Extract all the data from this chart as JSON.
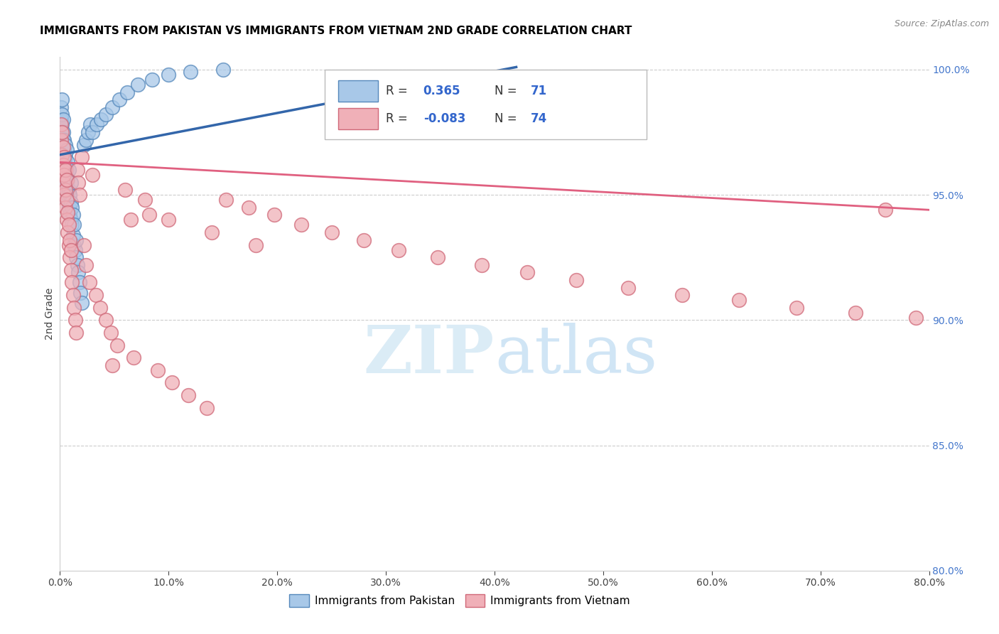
{
  "title": "IMMIGRANTS FROM PAKISTAN VS IMMIGRANTS FROM VIETNAM 2ND GRADE CORRELATION CHART",
  "source": "Source: ZipAtlas.com",
  "ylabel": "2nd Grade",
  "xlim": [
    0.0,
    0.8
  ],
  "ylim": [
    0.8,
    1.005
  ],
  "xticks": [
    0.0,
    0.1,
    0.2,
    0.3,
    0.4,
    0.5,
    0.6,
    0.7,
    0.8
  ],
  "yticks": [
    0.8,
    0.85,
    0.9,
    0.95,
    1.0
  ],
  "R_blue": 0.365,
  "N_blue": 71,
  "R_pink": -0.083,
  "N_pink": 74,
  "blue_fill": "#a8c8e8",
  "blue_edge": "#5588bb",
  "pink_fill": "#f0b0b8",
  "pink_edge": "#d06878",
  "blue_line": "#3366aa",
  "pink_line": "#e06080",
  "grid_color": "#cccccc",
  "watermark_color": "#d8eaf5",
  "legend_label_blue": "Immigrants from Pakistan",
  "legend_label_pink": "Immigrants from Vietnam",
  "blue_line_x": [
    0.0,
    0.42
  ],
  "blue_line_y": [
    0.966,
    1.001
  ],
  "pink_line_x": [
    0.0,
    0.8
  ],
  "pink_line_y": [
    0.963,
    0.944
  ],
  "pakistan_x": [
    0.001,
    0.001,
    0.001,
    0.002,
    0.002,
    0.002,
    0.002,
    0.002,
    0.002,
    0.003,
    0.003,
    0.003,
    0.003,
    0.003,
    0.003,
    0.004,
    0.004,
    0.004,
    0.004,
    0.004,
    0.005,
    0.005,
    0.005,
    0.005,
    0.005,
    0.006,
    0.006,
    0.006,
    0.006,
    0.007,
    0.007,
    0.007,
    0.007,
    0.008,
    0.008,
    0.008,
    0.009,
    0.009,
    0.01,
    0.01,
    0.01,
    0.011,
    0.011,
    0.012,
    0.012,
    0.013,
    0.013,
    0.014,
    0.015,
    0.015,
    0.016,
    0.017,
    0.018,
    0.019,
    0.02,
    0.022,
    0.024,
    0.026,
    0.028,
    0.03,
    0.034,
    0.038,
    0.042,
    0.048,
    0.055,
    0.062,
    0.072,
    0.085,
    0.1,
    0.12,
    0.15
  ],
  "pakistan_y": [
    0.98,
    0.975,
    0.985,
    0.978,
    0.97,
    0.982,
    0.968,
    0.975,
    0.988,
    0.965,
    0.972,
    0.98,
    0.96,
    0.968,
    0.975,
    0.958,
    0.965,
    0.972,
    0.96,
    0.968,
    0.955,
    0.962,
    0.97,
    0.958,
    0.965,
    0.952,
    0.96,
    0.968,
    0.955,
    0.948,
    0.956,
    0.963,
    0.95,
    0.945,
    0.952,
    0.96,
    0.942,
    0.95,
    0.94,
    0.947,
    0.955,
    0.938,
    0.945,
    0.934,
    0.942,
    0.93,
    0.938,
    0.928,
    0.925,
    0.932,
    0.922,
    0.919,
    0.915,
    0.911,
    0.907,
    0.97,
    0.972,
    0.975,
    0.978,
    0.975,
    0.978,
    0.98,
    0.982,
    0.985,
    0.988,
    0.991,
    0.994,
    0.996,
    0.998,
    0.999,
    1.0
  ],
  "vietnam_x": [
    0.001,
    0.001,
    0.002,
    0.002,
    0.002,
    0.003,
    0.003,
    0.003,
    0.004,
    0.004,
    0.004,
    0.005,
    0.005,
    0.005,
    0.006,
    0.006,
    0.006,
    0.007,
    0.007,
    0.008,
    0.008,
    0.009,
    0.009,
    0.01,
    0.01,
    0.011,
    0.012,
    0.013,
    0.014,
    0.015,
    0.016,
    0.017,
    0.018,
    0.02,
    0.022,
    0.024,
    0.027,
    0.03,
    0.033,
    0.037,
    0.042,
    0.047,
    0.053,
    0.06,
    0.068,
    0.078,
    0.09,
    0.103,
    0.118,
    0.135,
    0.153,
    0.174,
    0.197,
    0.222,
    0.25,
    0.28,
    0.312,
    0.348,
    0.388,
    0.43,
    0.475,
    0.523,
    0.573,
    0.625,
    0.678,
    0.732,
    0.788,
    0.1,
    0.14,
    0.18,
    0.048,
    0.065,
    0.082,
    0.76
  ],
  "vietnam_y": [
    0.978,
    0.972,
    0.966,
    0.975,
    0.96,
    0.955,
    0.962,
    0.969,
    0.95,
    0.958,
    0.965,
    0.945,
    0.952,
    0.96,
    0.94,
    0.948,
    0.956,
    0.935,
    0.943,
    0.93,
    0.938,
    0.925,
    0.932,
    0.92,
    0.928,
    0.915,
    0.91,
    0.905,
    0.9,
    0.895,
    0.96,
    0.955,
    0.95,
    0.965,
    0.93,
    0.922,
    0.915,
    0.958,
    0.91,
    0.905,
    0.9,
    0.895,
    0.89,
    0.952,
    0.885,
    0.948,
    0.88,
    0.875,
    0.87,
    0.865,
    0.948,
    0.945,
    0.942,
    0.938,
    0.935,
    0.932,
    0.928,
    0.925,
    0.922,
    0.919,
    0.916,
    0.913,
    0.91,
    0.908,
    0.905,
    0.903,
    0.901,
    0.94,
    0.935,
    0.93,
    0.882,
    0.94,
    0.942,
    0.944
  ]
}
